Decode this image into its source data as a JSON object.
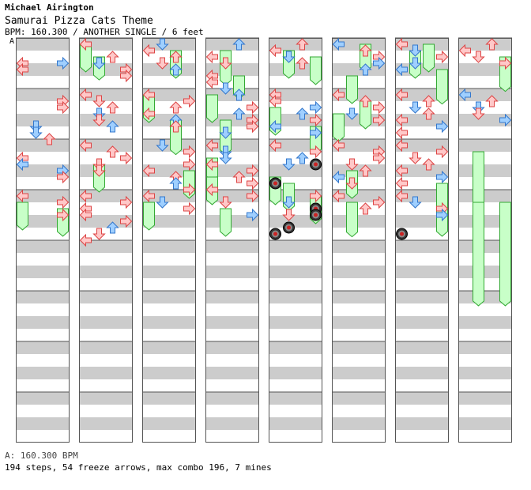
{
  "header": {
    "artist": "Michael Airington",
    "title": "Samurai Pizza Cats Theme",
    "meta": "BPM: 160.300 / ANOTHER SINGLE / 6 feet",
    "bpm_marker": "A"
  },
  "footer": {
    "bpm_line": "A: 160.300 BPM",
    "stats": "194 steps, 54 freeze arrows, max combo 196, 7 mines"
  },
  "colors": {
    "stripe": "#cccccc",
    "border": "#555555",
    "red_arrow": "#ffc8c8",
    "red_stroke": "#dd4444",
    "blue_arrow": "#9fcfff",
    "blue_stroke": "#3377cc",
    "freeze": "#c8ffc8",
    "freeze_stroke": "#33aa33",
    "mine": "#333333"
  },
  "chart_data": {
    "type": "step-chart",
    "columns": 8,
    "lanes": [
      "left",
      "down",
      "up",
      "right"
    ],
    "notes": [
      [
        0,
        0,
        3,
        "L",
        "r"
      ],
      [
        0,
        0,
        3,
        "R",
        "b"
      ],
      [
        0,
        0,
        4,
        "L",
        "r"
      ],
      [
        0,
        1,
        1,
        "R",
        "r"
      ],
      [
        0,
        1,
        2,
        "R",
        "r"
      ],
      [
        0,
        1,
        5,
        "D",
        "b"
      ],
      [
        0,
        1,
        6,
        "D",
        "b"
      ],
      [
        0,
        1,
        7,
        "U",
        "r"
      ],
      [
        0,
        2,
        2,
        "L",
        "r"
      ],
      [
        0,
        2,
        3,
        "L",
        "b"
      ],
      [
        0,
        2,
        4,
        "R",
        "b"
      ],
      [
        0,
        2,
        5,
        "R",
        "r"
      ],
      [
        0,
        3,
        0,
        "L",
        "r"
      ],
      [
        0,
        3,
        1,
        "R",
        "r"
      ],
      [
        0,
        3,
        3,
        "R",
        "r"
      ],
      [
        1,
        0,
        0,
        "L",
        "r"
      ],
      [
        1,
        0,
        2,
        "U",
        "r"
      ],
      [
        1,
        0,
        3,
        "D",
        "b"
      ],
      [
        1,
        0,
        4,
        "R",
        "r"
      ],
      [
        1,
        0,
        5,
        "R",
        "r"
      ],
      [
        1,
        1,
        0,
        "L",
        "r"
      ],
      [
        1,
        1,
        1,
        "D",
        "r"
      ],
      [
        1,
        1,
        2,
        "U",
        "r"
      ],
      [
        1,
        1,
        3,
        "D",
        "b"
      ],
      [
        1,
        1,
        4,
        "D",
        "r"
      ],
      [
        1,
        1,
        5,
        "U",
        "b"
      ],
      [
        1,
        2,
        0,
        "L",
        "r"
      ],
      [
        1,
        2,
        1,
        "U",
        "r"
      ],
      [
        1,
        2,
        2,
        "R",
        "r"
      ],
      [
        1,
        2,
        3,
        "D",
        "r"
      ],
      [
        1,
        2,
        4,
        "D",
        "r"
      ],
      [
        1,
        3,
        0,
        "L",
        "r"
      ],
      [
        1,
        3,
        1,
        "R",
        "r"
      ],
      [
        1,
        3,
        2,
        "L",
        "r"
      ],
      [
        1,
        3,
        3,
        "L",
        "r"
      ],
      [
        1,
        3,
        4,
        "R",
        "r"
      ],
      [
        1,
        3,
        5,
        "U",
        "b"
      ],
      [
        1,
        3,
        6,
        "D",
        "r"
      ],
      [
        1,
        3,
        7,
        "L",
        "r"
      ],
      [
        2,
        0,
        0,
        "D",
        "b"
      ],
      [
        2,
        0,
        1,
        "L",
        "r"
      ],
      [
        2,
        0,
        2,
        "U",
        "r"
      ],
      [
        2,
        0,
        3,
        "D",
        "r"
      ],
      [
        2,
        0,
        4,
        "U",
        "b"
      ],
      [
        2,
        1,
        0,
        "L",
        "r"
      ],
      [
        2,
        1,
        1,
        "R",
        "r"
      ],
      [
        2,
        1,
        2,
        "U",
        "r"
      ],
      [
        2,
        1,
        3,
        "L",
        "r"
      ],
      [
        2,
        1,
        4,
        "U",
        "b"
      ],
      [
        2,
        1,
        5,
        "U",
        "r"
      ],
      [
        2,
        2,
        0,
        "D",
        "b"
      ],
      [
        2,
        2,
        1,
        "R",
        "r"
      ],
      [
        2,
        2,
        3,
        "R",
        "r"
      ],
      [
        2,
        2,
        4,
        "L",
        "r"
      ],
      [
        2,
        2,
        5,
        "U",
        "r"
      ],
      [
        2,
        2,
        6,
        "U",
        "b"
      ],
      [
        2,
        2,
        7,
        "R",
        "r"
      ],
      [
        2,
        3,
        0,
        "L",
        "r"
      ],
      [
        2,
        3,
        1,
        "D",
        "b"
      ],
      [
        2,
        3,
        2,
        "R",
        "r"
      ],
      [
        3,
        0,
        0,
        "U",
        "b"
      ],
      [
        3,
        0,
        2,
        "L",
        "r"
      ],
      [
        3,
        0,
        3,
        "D",
        "r"
      ],
      [
        3,
        0,
        5,
        "L",
        "r"
      ],
      [
        3,
        0,
        6,
        "L",
        "r"
      ],
      [
        3,
        0,
        7,
        "D",
        "b"
      ],
      [
        3,
        1,
        0,
        "U",
        "b"
      ],
      [
        3,
        1,
        2,
        "R",
        "r"
      ],
      [
        3,
        1,
        3,
        "U",
        "b"
      ],
      [
        3,
        1,
        4,
        "R",
        "r"
      ],
      [
        3,
        1,
        5,
        "R",
        "r"
      ],
      [
        3,
        1,
        6,
        "D",
        "b"
      ],
      [
        3,
        2,
        0,
        "L",
        "r"
      ],
      [
        3,
        2,
        1,
        "D",
        "b"
      ],
      [
        3,
        2,
        2,
        "D",
        "b"
      ],
      [
        3,
        2,
        3,
        "L",
        "r"
      ],
      [
        3,
        2,
        4,
        "R",
        "r"
      ],
      [
        3,
        2,
        5,
        "U",
        "r"
      ],
      [
        3,
        2,
        6,
        "R",
        "r"
      ],
      [
        3,
        2,
        7,
        "L",
        "r"
      ],
      [
        3,
        3,
        0,
        "R",
        "r"
      ],
      [
        3,
        3,
        1,
        "D",
        "r"
      ],
      [
        3,
        3,
        3,
        "R",
        "b"
      ],
      [
        4,
        0,
        0,
        "U",
        "r"
      ],
      [
        4,
        0,
        1,
        "L",
        "r"
      ],
      [
        4,
        0,
        2,
        "D",
        "b"
      ],
      [
        4,
        0,
        3,
        "U",
        "r"
      ],
      [
        4,
        1,
        0,
        "L",
        "r"
      ],
      [
        4,
        1,
        1,
        "L",
        "r"
      ],
      [
        4,
        1,
        2,
        "R",
        "b"
      ],
      [
        4,
        1,
        3,
        "U",
        "b"
      ],
      [
        4,
        1,
        4,
        "R",
        "r"
      ],
      [
        4,
        1,
        5,
        "L",
        "b"
      ],
      [
        4,
        1,
        6,
        "R",
        "b"
      ],
      [
        4,
        2,
        0,
        "L",
        "r"
      ],
      [
        4,
        2,
        1,
        "R",
        "r"
      ],
      [
        4,
        2,
        2,
        "U",
        "b"
      ],
      [
        4,
        2,
        3,
        "D",
        "b"
      ],
      [
        4,
        3,
        0,
        "R",
        "r"
      ],
      [
        4,
        3,
        1,
        "D",
        "b"
      ],
      [
        4,
        3,
        3,
        "D",
        "r"
      ],
      [
        5,
        0,
        0,
        "L",
        "b"
      ],
      [
        5,
        0,
        1,
        "U",
        "r"
      ],
      [
        5,
        0,
        2,
        "R",
        "r"
      ],
      [
        5,
        0,
        3,
        "R",
        "b"
      ],
      [
        5,
        0,
        4,
        "U",
        "b"
      ],
      [
        5,
        1,
        0,
        "L",
        "r"
      ],
      [
        5,
        1,
        1,
        "U",
        "r"
      ],
      [
        5,
        1,
        2,
        "R",
        "r"
      ],
      [
        5,
        1,
        3,
        "D",
        "b"
      ],
      [
        5,
        1,
        4,
        "R",
        "r"
      ],
      [
        5,
        2,
        0,
        "L",
        "r"
      ],
      [
        5,
        2,
        1,
        "R",
        "r"
      ],
      [
        5,
        2,
        2,
        "R",
        "r"
      ],
      [
        5,
        2,
        3,
        "D",
        "r"
      ],
      [
        5,
        2,
        4,
        "U",
        "r"
      ],
      [
        5,
        2,
        5,
        "L",
        "b"
      ],
      [
        5,
        2,
        6,
        "D",
        "r"
      ],
      [
        5,
        3,
        0,
        "L",
        "r"
      ],
      [
        5,
        3,
        1,
        "R",
        "r"
      ],
      [
        5,
        3,
        2,
        "U",
        "r"
      ],
      [
        6,
        0,
        0,
        "L",
        "r"
      ],
      [
        6,
        0,
        1,
        "D",
        "b"
      ],
      [
        6,
        0,
        2,
        "R",
        "r"
      ],
      [
        6,
        0,
        3,
        "D",
        "b"
      ],
      [
        6,
        0,
        4,
        "L",
        "b"
      ],
      [
        6,
        1,
        0,
        "L",
        "r"
      ],
      [
        6,
        1,
        1,
        "U",
        "r"
      ],
      [
        6,
        1,
        2,
        "D",
        "b"
      ],
      [
        6,
        1,
        3,
        "U",
        "r"
      ],
      [
        6,
        1,
        4,
        "L",
        "r"
      ],
      [
        6,
        1,
        5,
        "R",
        "b"
      ],
      [
        6,
        1,
        6,
        "L",
        "r"
      ],
      [
        6,
        2,
        0,
        "L",
        "r"
      ],
      [
        6,
        2,
        1,
        "R",
        "r"
      ],
      [
        6,
        2,
        2,
        "D",
        "r"
      ],
      [
        6,
        2,
        3,
        "U",
        "r"
      ],
      [
        6,
        2,
        4,
        "L",
        "r"
      ],
      [
        6,
        2,
        5,
        "R",
        "b"
      ],
      [
        6,
        2,
        6,
        "L",
        "r"
      ],
      [
        6,
        3,
        0,
        "L",
        "r"
      ],
      [
        6,
        3,
        1,
        "D",
        "b"
      ],
      [
        6,
        3,
        2,
        "R",
        "r"
      ],
      [
        6,
        3,
        3,
        "R",
        "b"
      ],
      [
        7,
        0,
        0,
        "U",
        "r"
      ],
      [
        7,
        0,
        1,
        "L",
        "r"
      ],
      [
        7,
        0,
        2,
        "D",
        "r"
      ],
      [
        7,
        0,
        3,
        "R",
        "r"
      ],
      [
        7,
        1,
        0,
        "L",
        "b"
      ],
      [
        7,
        1,
        1,
        "U",
        "r"
      ],
      [
        7,
        1,
        2,
        "D",
        "b"
      ],
      [
        7,
        1,
        3,
        "D",
        "r"
      ],
      [
        7,
        1,
        4,
        "R",
        "b"
      ]
    ],
    "freezes": [
      [
        0,
        3,
        1,
        "left",
        1.2
      ],
      [
        0,
        3,
        2,
        "right",
        1.2
      ],
      [
        1,
        0,
        0,
        "left",
        1.2
      ],
      [
        1,
        0,
        2,
        "down",
        1.0
      ],
      [
        1,
        2,
        3,
        "down",
        1.2
      ],
      [
        2,
        0,
        1,
        "up",
        1.2
      ],
      [
        2,
        1,
        0,
        "left",
        1.2
      ],
      [
        2,
        1,
        4,
        "up",
        1.5
      ],
      [
        2,
        2,
        4,
        "right",
        1.2
      ],
      [
        2,
        3,
        1,
        "left",
        1.2
      ],
      [
        3,
        0,
        1,
        "down",
        1.5
      ],
      [
        3,
        0,
        5,
        "up",
        1.0
      ],
      [
        3,
        1,
        0,
        "left",
        1.2
      ],
      [
        3,
        1,
        4,
        "down",
        1.5
      ],
      [
        3,
        2,
        2,
        "left",
        1.0
      ],
      [
        3,
        2,
        5,
        "left",
        1.2
      ],
      [
        3,
        3,
        2,
        "down",
        1.2
      ],
      [
        4,
        0,
        1,
        "down",
        1.2
      ],
      [
        4,
        0,
        2,
        "right",
        1.2
      ],
      [
        4,
        1,
        2,
        "left",
        1.2
      ],
      [
        4,
        1,
        5,
        "right",
        1.2
      ],
      [
        4,
        2,
        5,
        "left",
        1.2
      ],
      [
        4,
        2,
        6,
        "down",
        1.2
      ],
      [
        4,
        3,
        0,
        "right",
        1.2
      ],
      [
        5,
        0,
        0,
        "up",
        1.2
      ],
      [
        5,
        0,
        5,
        "down",
        1.2
      ],
      [
        5,
        1,
        1,
        "up",
        1.2
      ],
      [
        5,
        1,
        3,
        "left",
        1.2
      ],
      [
        5,
        2,
        4,
        "down",
        1.2
      ],
      [
        5,
        3,
        1,
        "down",
        1.5
      ],
      [
        6,
        0,
        0,
        "up",
        1.2
      ],
      [
        6,
        0,
        1,
        "down",
        1.2
      ],
      [
        6,
        0,
        4,
        "right",
        1.5
      ],
      [
        6,
        2,
        6,
        "right",
        1.5
      ],
      [
        6,
        3,
        2,
        "right",
        1.2
      ],
      [
        7,
        0,
        2,
        "right",
        1.5
      ],
      [
        7,
        2,
        1,
        "down",
        5.5
      ],
      [
        7,
        3,
        1,
        "down",
        4.5
      ],
      [
        7,
        3,
        1,
        "right",
        4.5
      ]
    ],
    "mines": [
      [
        4,
        2,
        3,
        "right"
      ],
      [
        4,
        2,
        6,
        "left"
      ],
      [
        4,
        3,
        2,
        "right"
      ],
      [
        4,
        3,
        3,
        "right"
      ],
      [
        4,
        3,
        5,
        "down"
      ],
      [
        4,
        3,
        6,
        "left"
      ],
      [
        6,
        3,
        6,
        "left"
      ]
    ]
  }
}
